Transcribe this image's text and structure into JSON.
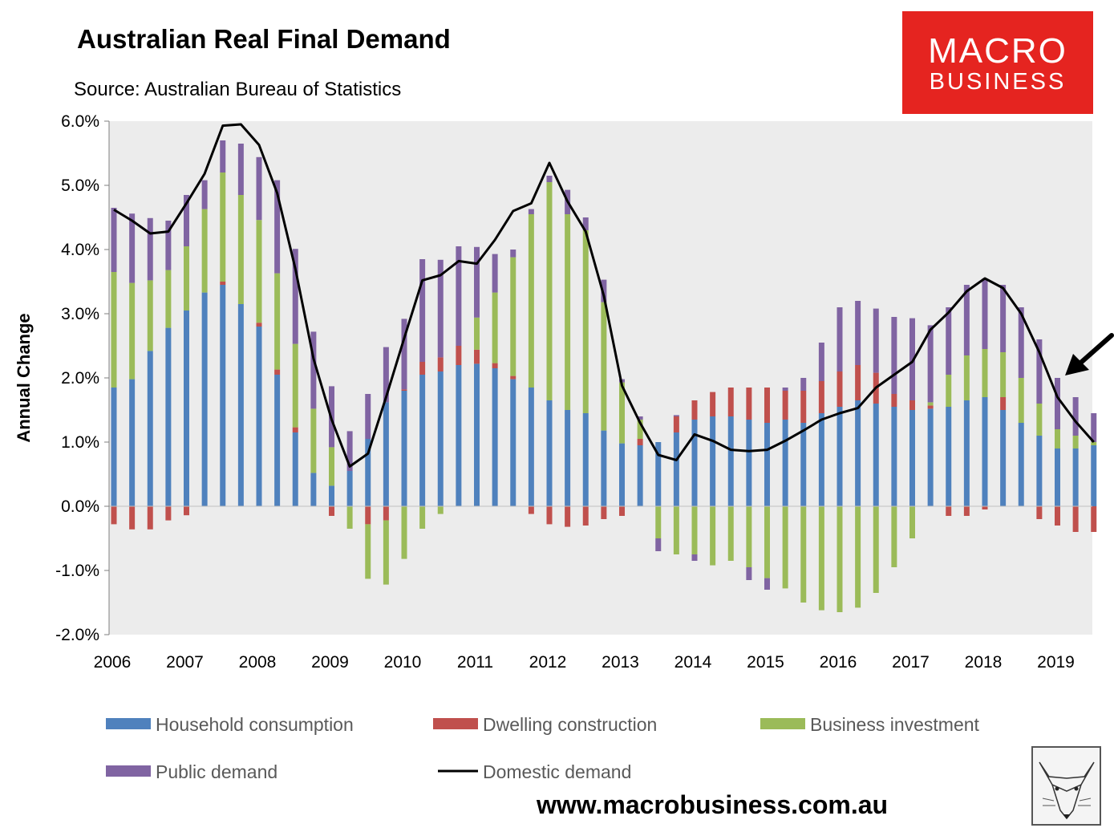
{
  "title": "Australian Real Final Demand",
  "subtitle": "Source: Australian Bureau of Statistics",
  "logo": {
    "line1": "MACRO",
    "line2": "BUSINESS",
    "color": "#e52420"
  },
  "website": "www.macrobusiness.com.au",
  "badge_icon": "fox-sketch-icon",
  "arrow_icon": "arrow-pointer-icon",
  "chart_data": {
    "type": "bar",
    "stacked": true,
    "ylabel": "Annual Change",
    "xlabel": "",
    "ylim": [
      -2.0,
      6.0
    ],
    "y_ticks": [
      "-2.0%",
      "-1.0%",
      "0.0%",
      "1.0%",
      "2.0%",
      "3.0%",
      "4.0%",
      "5.0%",
      "6.0%"
    ],
    "y_tick_values": [
      -2,
      -1,
      0,
      1,
      2,
      3,
      4,
      5,
      6
    ],
    "x_tick_labels": [
      "2006",
      "2007",
      "2008",
      "2009",
      "2010",
      "2011",
      "2012",
      "2013",
      "2014",
      "2015",
      "2016",
      "2017",
      "2018",
      "2019"
    ],
    "x_start": 2006.0,
    "quarter_step": 0.25,
    "grid": false,
    "plot_background": "#ececec",
    "legend_position": "bottom",
    "series": [
      {
        "name": "Household consumption",
        "kind": "bar",
        "color": "#4f81bd",
        "values": [
          1.85,
          1.98,
          2.42,
          2.78,
          3.05,
          3.33,
          3.45,
          3.15,
          2.8,
          2.05,
          1.15,
          0.52,
          0.32,
          0.55,
          1.05,
          1.62,
          1.8,
          2.05,
          2.1,
          2.2,
          2.22,
          2.15,
          1.98,
          1.85,
          1.65,
          1.5,
          1.45,
          1.18,
          0.98,
          0.95,
          1.0,
          1.15,
          1.35,
          1.4,
          1.4,
          1.35,
          1.3,
          1.35,
          1.3,
          1.45,
          1.55,
          1.65,
          1.6,
          1.55,
          1.5,
          1.52,
          1.55,
          1.65,
          1.7,
          1.5,
          1.3,
          1.1,
          0.9,
          0.9,
          0.95
        ]
      },
      {
        "name": "Dwelling construction",
        "kind": "bar",
        "color": "#c0504d",
        "values": [
          -0.28,
          -0.36,
          -0.36,
          -0.22,
          -0.14,
          0.0,
          0.05,
          0.0,
          0.06,
          0.08,
          0.08,
          0.0,
          -0.15,
          0.0,
          -0.28,
          -0.22,
          0.02,
          0.2,
          0.22,
          0.3,
          0.22,
          0.08,
          0.05,
          -0.12,
          -0.28,
          -0.32,
          -0.3,
          -0.2,
          -0.15,
          0.1,
          0.0,
          0.25,
          0.3,
          0.38,
          0.45,
          0.5,
          0.55,
          0.45,
          0.5,
          0.5,
          0.55,
          0.55,
          0.48,
          0.2,
          0.15,
          0.05,
          -0.15,
          -0.15,
          -0.05,
          0.2,
          0.0,
          -0.2,
          -0.3,
          -0.4,
          -0.4
        ]
      },
      {
        "name": "Business investment",
        "kind": "bar",
        "color": "#9bbb59",
        "values": [
          1.8,
          1.5,
          1.1,
          0.9,
          1.0,
          1.3,
          1.7,
          1.7,
          1.6,
          1.5,
          1.3,
          1.0,
          0.6,
          -0.35,
          -0.85,
          -1.0,
          -0.82,
          -0.35,
          -0.12,
          0.0,
          0.5,
          1.1,
          1.85,
          2.7,
          3.4,
          3.05,
          2.85,
          2.0,
          0.95,
          0.3,
          -0.5,
          -0.75,
          -0.75,
          -0.92,
          -0.85,
          -0.95,
          -1.12,
          -1.28,
          -1.5,
          -1.62,
          -1.65,
          -1.58,
          -1.35,
          -0.95,
          -0.5,
          0.05,
          0.5,
          0.7,
          0.75,
          0.7,
          0.7,
          0.5,
          0.3,
          0.2,
          0.05
        ]
      },
      {
        "name": "Public demand",
        "kind": "bar",
        "color": "#8064a2",
        "values": [
          1.0,
          1.08,
          0.97,
          0.77,
          0.8,
          0.45,
          0.5,
          0.8,
          0.98,
          1.45,
          1.48,
          1.2,
          0.95,
          0.62,
          0.7,
          0.86,
          1.1,
          1.6,
          1.52,
          1.55,
          1.1,
          0.6,
          0.12,
          0.08,
          0.1,
          0.38,
          0.2,
          0.35,
          0.05,
          0.05,
          -0.2,
          0.02,
          -0.1,
          0.0,
          0.0,
          -0.2,
          -0.18,
          0.05,
          0.2,
          0.6,
          1.0,
          1.0,
          1.0,
          1.2,
          1.28,
          1.2,
          1.05,
          1.1,
          1.1,
          1.05,
          1.1,
          1.0,
          0.8,
          0.6,
          0.45
        ]
      },
      {
        "name": "Domestic demand",
        "kind": "line",
        "color": "#000000",
        "values": [
          4.62,
          4.45,
          4.25,
          4.28,
          4.72,
          5.18,
          5.93,
          5.95,
          5.63,
          4.88,
          3.7,
          2.3,
          1.35,
          0.62,
          0.82,
          1.7,
          2.62,
          3.52,
          3.6,
          3.82,
          3.78,
          4.15,
          4.6,
          4.72,
          5.35,
          4.75,
          4.28,
          3.28,
          1.88,
          1.3,
          0.8,
          0.72,
          1.12,
          1.02,
          0.88,
          0.86,
          0.88,
          1.02,
          1.18,
          1.35,
          1.45,
          1.53,
          1.85,
          2.05,
          2.25,
          2.75,
          3.02,
          3.35,
          3.55,
          3.4,
          3.0,
          2.4,
          1.7,
          1.32,
          1.0
        ]
      }
    ]
  }
}
